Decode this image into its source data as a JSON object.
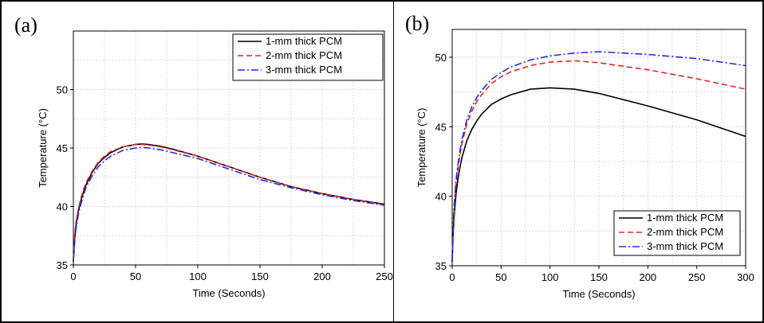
{
  "chart_data": [
    {
      "type": "line",
      "panel_label": "(a)",
      "xlabel": "Time (Seconds)",
      "ylabel": "Temperature (°C)",
      "xlim": [
        0,
        250
      ],
      "ylim": [
        35,
        55
      ],
      "xticks": [
        0,
        50,
        100,
        150,
        200,
        250
      ],
      "yticks": [
        35,
        40,
        45,
        50
      ],
      "grid": true,
      "legend_position": "top-right",
      "series": [
        {
          "name": "1-mm thick PCM",
          "color": "#000000",
          "dash": "solid",
          "x": [
            0,
            1,
            2,
            4,
            6,
            8,
            10,
            15,
            20,
            25,
            30,
            40,
            50,
            55,
            60,
            70,
            80,
            100,
            125,
            150,
            175,
            200,
            225,
            250
          ],
          "y": [
            35.3,
            37.2,
            38.3,
            39.6,
            40.5,
            41.2,
            41.8,
            42.9,
            43.7,
            44.2,
            44.6,
            45.1,
            45.3,
            45.35,
            45.3,
            45.15,
            44.9,
            44.3,
            43.4,
            42.5,
            41.7,
            41.1,
            40.6,
            40.2
          ]
        },
        {
          "name": "2-mm thick PCM",
          "color": "#d92a2a",
          "dash": "dashed",
          "x": [
            0,
            1,
            2,
            4,
            6,
            8,
            10,
            15,
            20,
            25,
            30,
            40,
            50,
            55,
            60,
            70,
            80,
            100,
            125,
            150,
            175,
            200,
            225,
            250
          ],
          "y": [
            35.5,
            37.5,
            38.6,
            39.8,
            40.7,
            41.4,
            42.0,
            43.0,
            43.8,
            44.3,
            44.7,
            45.1,
            45.3,
            45.3,
            45.25,
            45.1,
            44.85,
            44.3,
            43.4,
            42.5,
            41.7,
            41.1,
            40.6,
            40.15
          ]
        },
        {
          "name": "3-mm thick PCM",
          "color": "#2a2ad1",
          "dash": "dashdot",
          "x": [
            0,
            1,
            2,
            4,
            6,
            8,
            10,
            15,
            20,
            25,
            30,
            40,
            50,
            55,
            60,
            70,
            80,
            100,
            125,
            150,
            175,
            200,
            225,
            250
          ],
          "y": [
            35.4,
            37.0,
            38.0,
            39.3,
            40.2,
            40.9,
            41.6,
            42.6,
            43.4,
            43.9,
            44.3,
            44.8,
            45.0,
            45.05,
            45.0,
            44.85,
            44.6,
            44.1,
            43.2,
            42.3,
            41.6,
            41.0,
            40.5,
            40.1
          ]
        }
      ]
    },
    {
      "type": "line",
      "panel_label": "(b)",
      "xlabel": "Time (Seconds)",
      "ylabel": "Temperature (°C)",
      "xlim": [
        0,
        300
      ],
      "ylim": [
        35,
        52
      ],
      "xticks": [
        0,
        50,
        100,
        150,
        200,
        250,
        300
      ],
      "yticks": [
        35,
        40,
        45,
        50
      ],
      "grid": true,
      "legend_position": "bottom-right",
      "series": [
        {
          "name": "1-mm thick PCM",
          "color": "#000000",
          "dash": "solid",
          "x": [
            0,
            1,
            2,
            4,
            6,
            8,
            10,
            15,
            20,
            25,
            30,
            40,
            50,
            60,
            80,
            100,
            125,
            150,
            200,
            250,
            300
          ],
          "y": [
            35.3,
            37.3,
            38.6,
            40.2,
            41.3,
            42.1,
            42.8,
            44.0,
            44.8,
            45.4,
            45.9,
            46.6,
            47.0,
            47.3,
            47.7,
            47.8,
            47.7,
            47.4,
            46.5,
            45.5,
            44.3
          ]
        },
        {
          "name": "2-mm thick PCM",
          "color": "#d92a2a",
          "dash": "dashed",
          "x": [
            0,
            1,
            2,
            4,
            6,
            8,
            10,
            15,
            20,
            25,
            30,
            40,
            50,
            60,
            80,
            100,
            125,
            150,
            200,
            250,
            300
          ],
          "y": [
            35.5,
            37.7,
            39.1,
            40.9,
            42.1,
            43.0,
            43.8,
            45.2,
            46.1,
            46.8,
            47.3,
            48.1,
            48.6,
            48.95,
            49.4,
            49.65,
            49.75,
            49.6,
            49.1,
            48.45,
            47.7
          ]
        },
        {
          "name": "3-mm thick PCM",
          "color": "#2a2ad1",
          "dash": "dashdot",
          "x": [
            0,
            1,
            2,
            4,
            6,
            8,
            10,
            15,
            20,
            25,
            30,
            40,
            50,
            60,
            80,
            100,
            125,
            150,
            200,
            250,
            300
          ],
          "y": [
            35.4,
            37.9,
            39.4,
            41.2,
            42.4,
            43.3,
            44.1,
            45.5,
            46.4,
            47.1,
            47.6,
            48.4,
            48.9,
            49.3,
            49.8,
            50.1,
            50.3,
            50.4,
            50.2,
            49.9,
            49.4
          ]
        }
      ]
    }
  ]
}
